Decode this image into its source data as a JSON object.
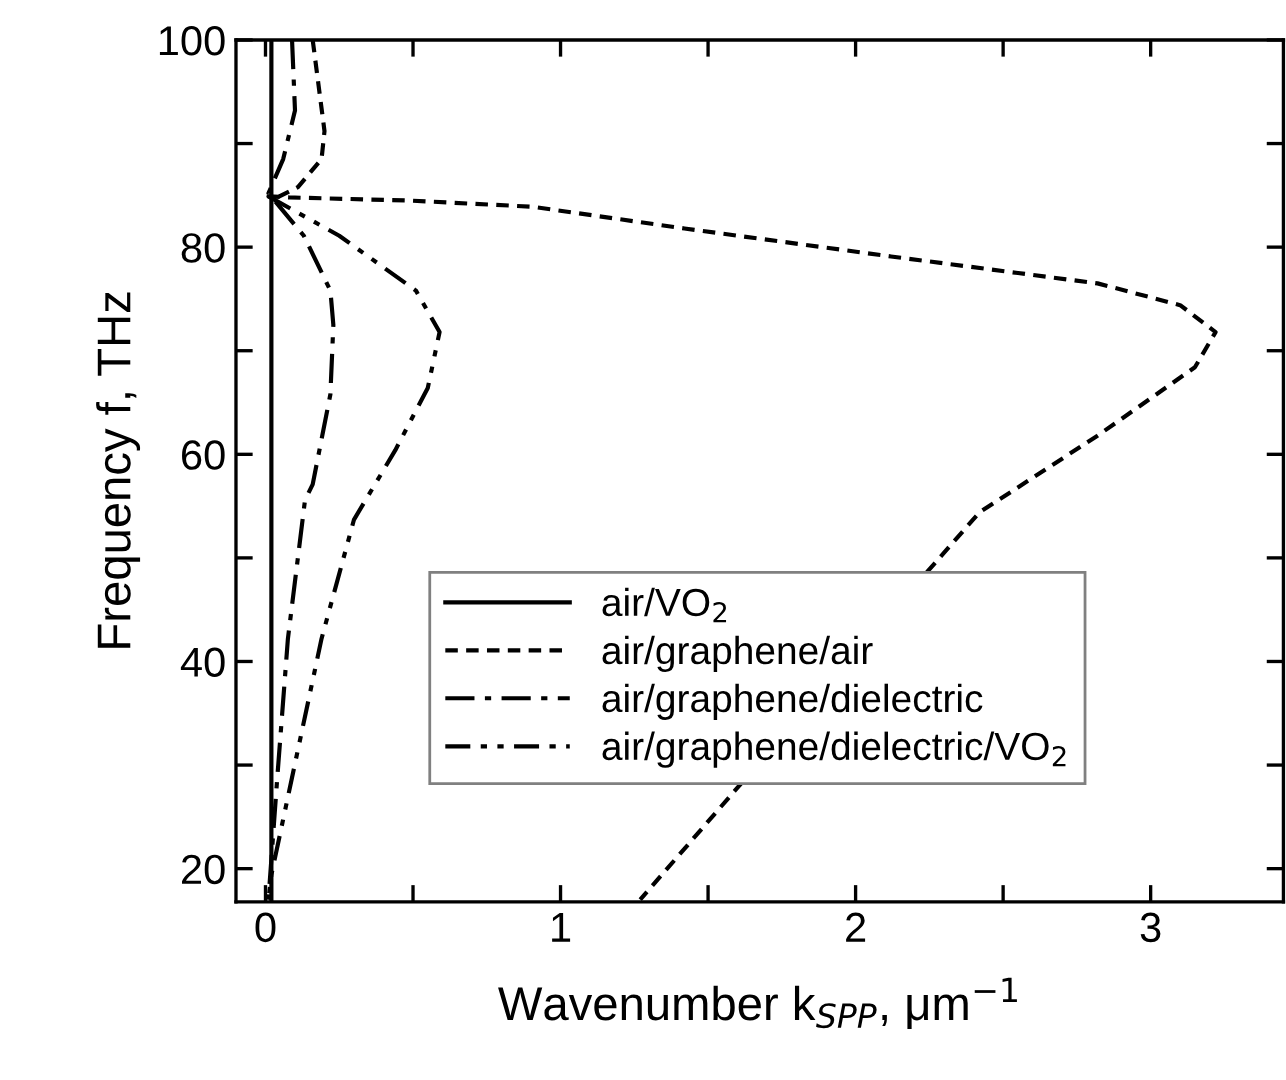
{
  "chart_data": {
    "type": "line",
    "xlabel": "Wavenumber k$_{SPP}$, μm$^{−1}$",
    "ylabel": "Frequency f, THz",
    "xlim": [
      -0.1,
      3.45
    ],
    "ylim": [
      16.8,
      100
    ],
    "xticks": [
      0,
      {
        "value": 0.5,
        "label": null
      },
      1,
      {
        "value": 1.5,
        "label": null
      },
      2,
      {
        "value": 2.5,
        "label": null
      },
      3
    ],
    "yticks": [
      20,
      {
        "value": 30,
        "label": null
      },
      40,
      {
        "value": 50,
        "label": null
      },
      60,
      {
        "value": 70,
        "label": null
      },
      80,
      {
        "value": 90,
        "label": null
      },
      100
    ],
    "grid": false,
    "legend": "bottom",
    "series": [
      {
        "name": "air/VO$_{2}$",
        "color": "#000000",
        "line_style": "solid",
        "x": [
          0.02,
          0.02
        ],
        "values": [
          17,
          100
        ]
      },
      {
        "name": "air/graphene/air",
        "color": "#000000",
        "line_style": "dashed",
        "x": [
          0.16,
          0.2,
          0.19,
          0.11,
          0.04,
          0.01,
          0.08,
          0.485,
          0.905,
          1.42,
          2.12,
          2.82,
          3.1,
          3.22,
          3.15,
          2.82,
          2.42,
          1.98,
          1.59,
          1.27
        ],
        "values": [
          100,
          91.2,
          88.5,
          85.8,
          84.8,
          84.9,
          84.8,
          84.5,
          83.9,
          81.8,
          79.1,
          76.5,
          74.4,
          71.8,
          68.4,
          61.8,
          54.4,
          null,
          27.5,
          17
        ]
      },
      {
        "name": "air/graphene/dielectric",
        "color": "#000000",
        "line_style": "dash-dot",
        "x": [
          0.09,
          0.1,
          0.06,
          0.01,
          0.13,
          0.22,
          0.23,
          0.22,
          0.16,
          0.134,
          0.076,
          0.04,
          0.01
        ],
        "values": [
          100,
          93.2,
          88.5,
          85.2,
          81.1,
          75.8,
          72.5,
          65.8,
          57.1,
          55.6,
          42.2,
          28.8,
          17
        ]
      },
      {
        "name": "air/graphene/dielectric/VO$_{2}$",
        "color": "#000000",
        "line_style": "dash-dot-dot",
        "x": [
          0.01,
          0.25,
          0.51,
          0.59,
          0.55,
          0.44,
          0.3,
          0.19,
          0.09,
          0.02,
          0.01
        ],
        "values": [
          84.9,
          81.1,
          75.8,
          71.8,
          66.4,
          60.4,
          53.7,
          42.2,
          28.8,
          19.4,
          17
        ]
      }
    ]
  }
}
